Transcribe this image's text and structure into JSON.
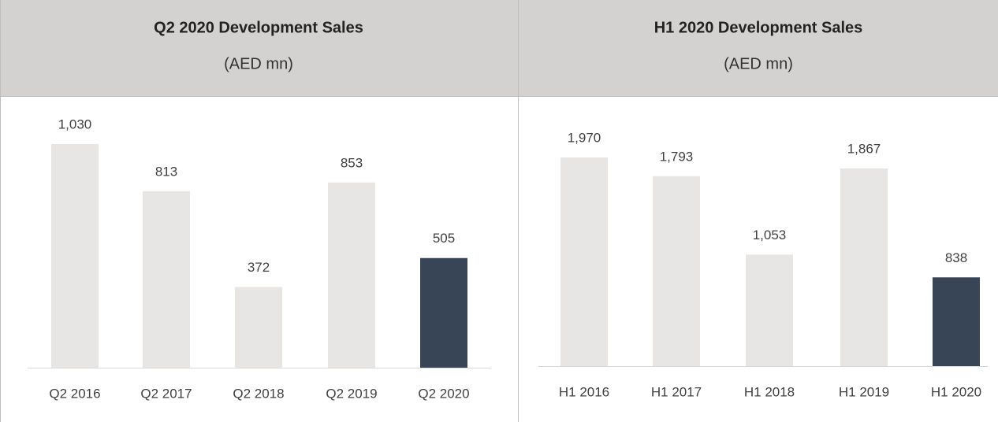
{
  "chart_data": [
    {
      "type": "bar",
      "title": "Q2 2020 Development Sales",
      "subtitle": "(AED mn)",
      "categories": [
        "Q2 2016",
        "Q2 2017",
        "Q2 2018",
        "Q2 2019",
        "Q2 2020"
      ],
      "values": [
        1030,
        813,
        372,
        853,
        505
      ],
      "value_labels": [
        "1,030",
        "813",
        "372",
        "853",
        "505"
      ],
      "colors": [
        "#e7e6e4",
        "#e7e6e4",
        "#e7e6e4",
        "#e7e6e4",
        "#374556"
      ]
    },
    {
      "type": "bar",
      "title": "H1 2020 Development Sales",
      "subtitle": "(AED mn)",
      "categories": [
        "H1 2016",
        "H1 2017",
        "H1 2018",
        "H1 2019",
        "H1 2020"
      ],
      "values": [
        1970,
        1793,
        1053,
        1867,
        838
      ],
      "value_labels": [
        "1,970",
        "1,793",
        "1,053",
        "1,867",
        "838"
      ],
      "colors": [
        "#e7e6e4",
        "#e7e6e4",
        "#e7e6e4",
        "#e7e6e4",
        "#374556"
      ]
    }
  ]
}
